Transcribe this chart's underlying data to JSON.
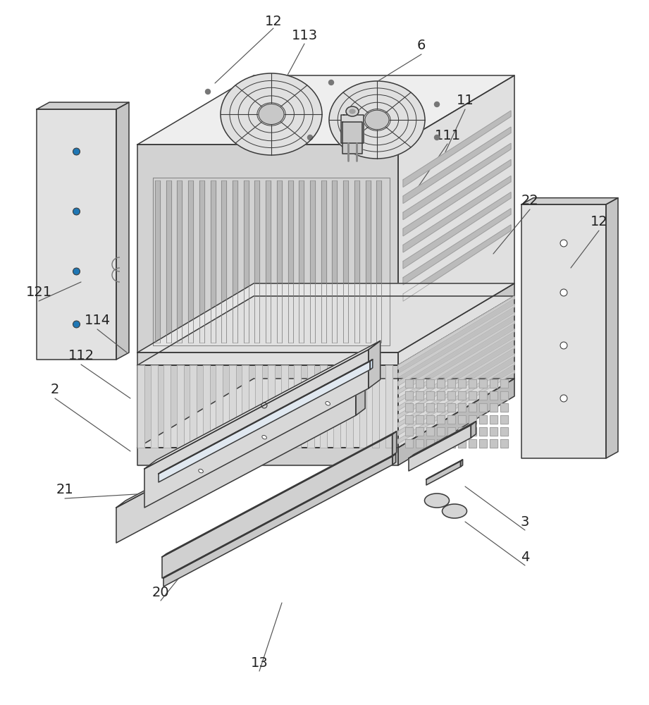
{
  "bg_color": "#ffffff",
  "line_color": "#3a3a3a",
  "line_width": 1.1,
  "label_fontsize": 14,
  "figsize": [
    9.21,
    10.0
  ],
  "dpi": 100,
  "face_top": "#efefef",
  "face_front": "#d4d4d4",
  "face_right": "#e2e2e2",
  "face_dark": "#c0c0c0",
  "face_light": "#f5f5f5",
  "vent_color": "#aaaaaa",
  "fin_color": "#999999"
}
